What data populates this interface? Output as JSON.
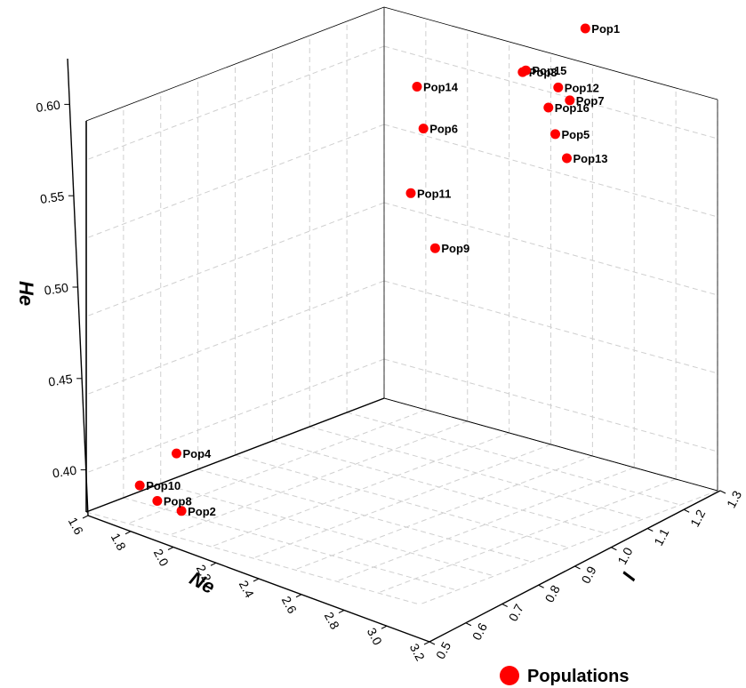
{
  "chart_data": {
    "type": "scatter",
    "axes": {
      "x": {
        "label": "Ne",
        "ticks": [
          "1.6",
          "1.8",
          "2.0",
          "2.2",
          "2.4",
          "2.6",
          "2.8",
          "3.0",
          "3.2"
        ]
      },
      "y": {
        "label": "I",
        "ticks": [
          "0.5",
          "0.6",
          "0.7",
          "0.8",
          "0.9",
          "1.0",
          "1.1",
          "1.2",
          "1.3"
        ]
      },
      "z": {
        "label": "He",
        "ticks": [
          "0.40",
          "0.45",
          "0.50",
          "0.55",
          "0.60"
        ]
      }
    },
    "legend": {
      "label": "Populations",
      "color": "#ff0000",
      "position": "bottom-right"
    },
    "grid": true,
    "points": [
      {
        "name": "Pop1",
        "Ne": 2.78,
        "I": 1.23,
        "He": 0.617
      },
      {
        "name": "Pop2",
        "Ne": 1.94,
        "I": 0.56,
        "He": 0.386
      },
      {
        "name": "Pop3",
        "Ne": 2.72,
        "I": 1.09,
        "He": 0.605
      },
      {
        "name": "Pop4",
        "Ne": 1.84,
        "I": 0.61,
        "He": 0.408
      },
      {
        "name": "Pop5",
        "Ne": 2.88,
        "I": 1.08,
        "He": 0.579
      },
      {
        "name": "Pop6",
        "Ne": 2.43,
        "I": 0.98,
        "He": 0.573
      },
      {
        "name": "Pop7",
        "Ne": 2.85,
        "I": 1.14,
        "He": 0.59
      },
      {
        "name": "Pop8",
        "Ne": 1.88,
        "I": 0.53,
        "He": 0.392
      },
      {
        "name": "Pop9",
        "Ne": 2.62,
        "I": 0.89,
        "He": 0.525
      },
      {
        "name": "Pop10",
        "Ne": 1.8,
        "I": 0.53,
        "He": 0.397
      },
      {
        "name": "Pop11",
        "Ne": 2.48,
        "I": 0.91,
        "He": 0.547
      },
      {
        "name": "Pop12",
        "Ne": 2.78,
        "I": 1.15,
        "He": 0.593
      },
      {
        "name": "Pop13",
        "Ne": 2.93,
        "I": 1.08,
        "He": 0.568
      },
      {
        "name": "Pop14",
        "Ne": 2.32,
        "I": 1.03,
        "He": 0.586
      },
      {
        "name": "Pop15",
        "Ne": 2.7,
        "I": 1.11,
        "He": 0.603
      },
      {
        "name": "Pop16",
        "Ne": 2.8,
        "I": 1.11,
        "He": 0.587
      }
    ]
  }
}
